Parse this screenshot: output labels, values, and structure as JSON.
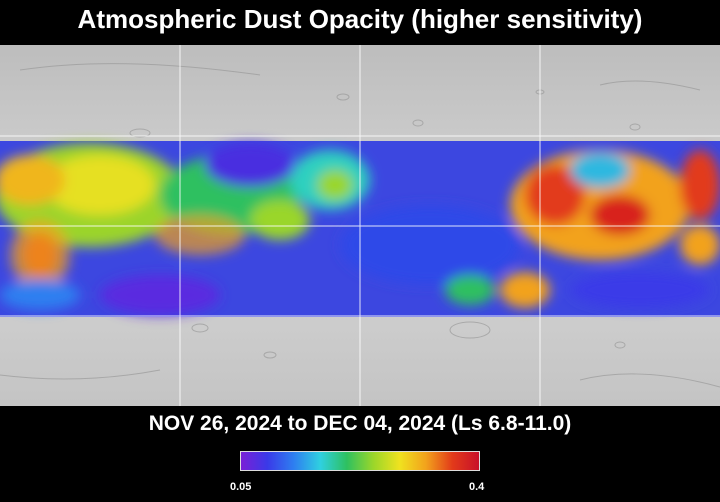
{
  "title": "Atmospheric Dust Opacity (higher sensitivity)",
  "date_range": "NOV 26, 2024 to DEC 04, 2024 (Ls 6.8-11.0)",
  "colorbar": {
    "min_label": "0.05",
    "max_label": "0.4",
    "colors": [
      "#7a1fd6",
      "#3a3ae8",
      "#2e7ff0",
      "#2fd0e0",
      "#2ec060",
      "#9ad62a",
      "#f0e21f",
      "#f2a21c",
      "#e23a1a",
      "#c8102a"
    ]
  },
  "map": {
    "basemap": "grayscale shaded relief",
    "coverage": "equatorial band with opacity overlay, polar regions show basemap only",
    "grid": true
  }
}
